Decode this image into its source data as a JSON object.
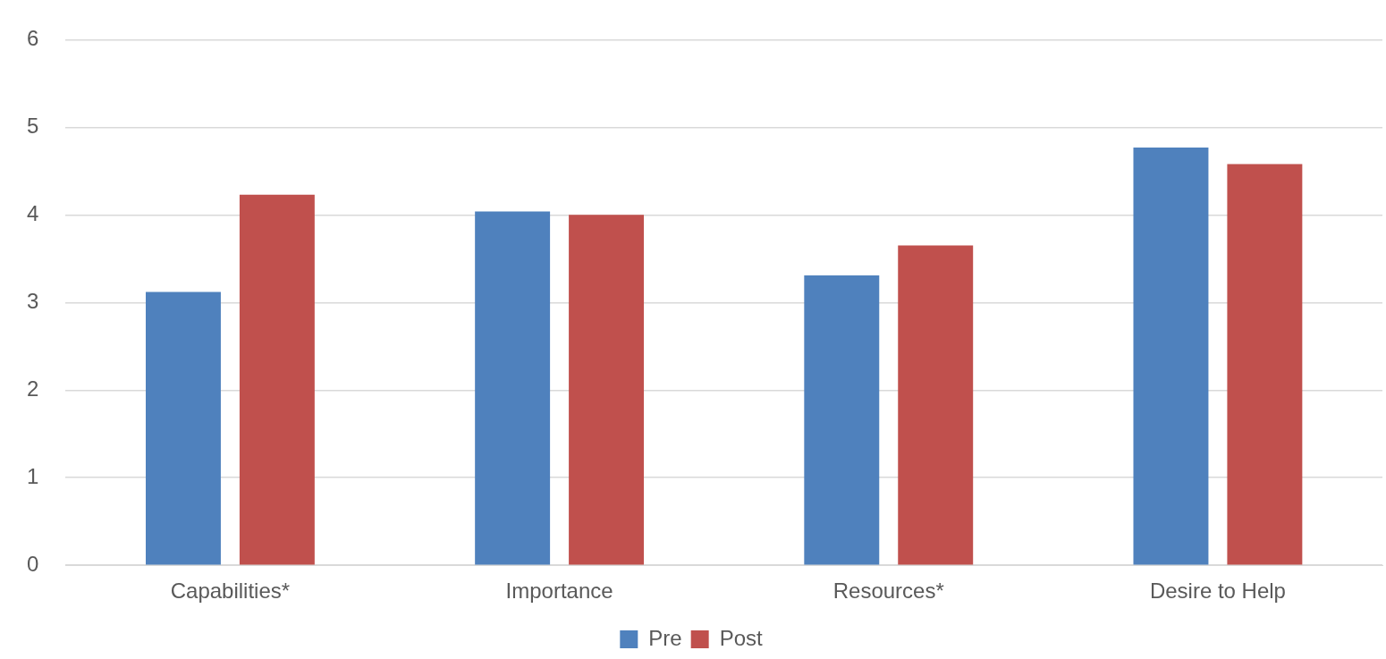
{
  "chart_data": {
    "type": "bar",
    "categories": [
      "Capabilities*",
      "Importance",
      "Resources*",
      "Desire to Help"
    ],
    "series": [
      {
        "name": "Pre",
        "color": "#4f81bd",
        "values": [
          3.12,
          4.04,
          3.31,
          4.77
        ]
      },
      {
        "name": "Post",
        "color": "#c0504d",
        "values": [
          4.23,
          4.0,
          3.65,
          4.58
        ]
      }
    ],
    "ylim": [
      0,
      6
    ],
    "yticks": [
      0,
      1,
      2,
      3,
      4,
      5,
      6
    ],
    "grid": "y",
    "legend": "bottom"
  }
}
